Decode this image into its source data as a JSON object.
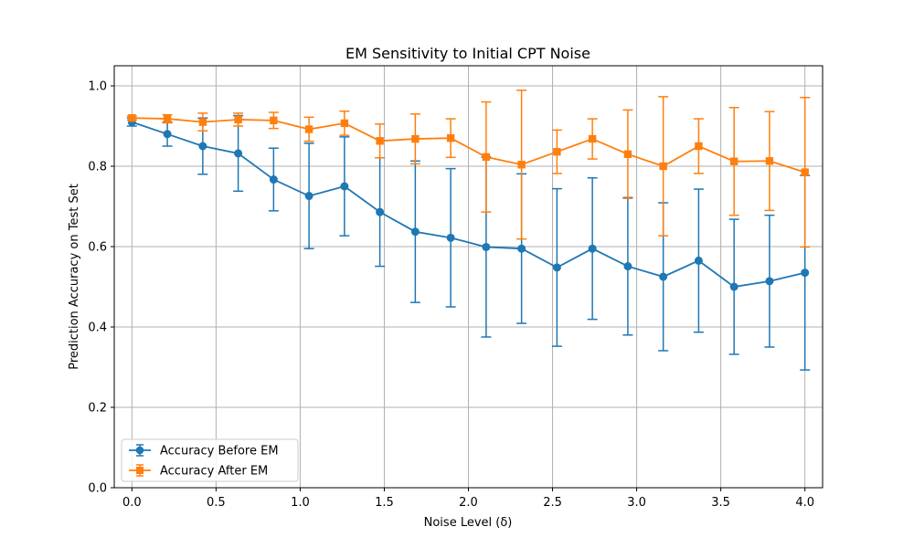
{
  "chart_data": {
    "type": "line",
    "title": "EM Sensitivity to Initial CPT Noise",
    "xlabel": "Noise Level (δ)",
    "ylabel": "Prediction Accuracy on Test Set",
    "xlim": [
      -0.105,
      4.105
    ],
    "ylim": [
      0.0,
      1.05
    ],
    "xticks": [
      0.0,
      0.5,
      1.0,
      1.5,
      2.0,
      2.5,
      3.0,
      3.5,
      4.0
    ],
    "xtick_labels": [
      "0.0",
      "0.5",
      "1.0",
      "1.5",
      "2.0",
      "2.5",
      "3.0",
      "3.5",
      "4.0"
    ],
    "yticks": [
      0.0,
      0.2,
      0.4,
      0.6,
      0.8,
      1.0
    ],
    "ytick_labels": [
      "0.0",
      "0.2",
      "0.4",
      "0.6",
      "0.8",
      "1.0"
    ],
    "grid": true,
    "legend_position": "lower-left",
    "x": [
      0.0,
      0.2105,
      0.4211,
      0.6316,
      0.8421,
      1.0526,
      1.2632,
      1.4737,
      1.6842,
      1.8947,
      2.1053,
      2.3158,
      2.5263,
      2.7368,
      2.9474,
      3.1579,
      3.3684,
      3.5789,
      3.7895,
      4.0
    ],
    "series": [
      {
        "name": "Accuracy Before EM",
        "color": "#1f77b4",
        "marker": "circle",
        "values": [
          0.91,
          0.88,
          0.85,
          0.832,
          0.767,
          0.726,
          0.75,
          0.686,
          0.637,
          0.622,
          0.599,
          0.595,
          0.548,
          0.595,
          0.551,
          0.525,
          0.565,
          0.5,
          0.514,
          0.535
        ],
        "errors": [
          0.01,
          0.03,
          0.07,
          0.094,
          0.078,
          0.131,
          0.123,
          0.135,
          0.176,
          0.172,
          0.224,
          0.186,
          0.196,
          0.176,
          0.171,
          0.184,
          0.178,
          0.168,
          0.164,
          0.242
        ]
      },
      {
        "name": "Accuracy After EM",
        "color": "#ff7f0e",
        "marker": "square",
        "values": [
          0.92,
          0.918,
          0.91,
          0.916,
          0.914,
          0.892,
          0.907,
          0.863,
          0.868,
          0.87,
          0.823,
          0.804,
          0.836,
          0.868,
          0.83,
          0.8,
          0.85,
          0.812,
          0.813,
          0.785
        ],
        "errors": [
          0.005,
          0.01,
          0.022,
          0.016,
          0.02,
          0.03,
          0.03,
          0.042,
          0.062,
          0.048,
          0.137,
          0.185,
          0.054,
          0.05,
          0.11,
          0.173,
          0.068,
          0.134,
          0.123,
          0.186
        ]
      }
    ]
  }
}
